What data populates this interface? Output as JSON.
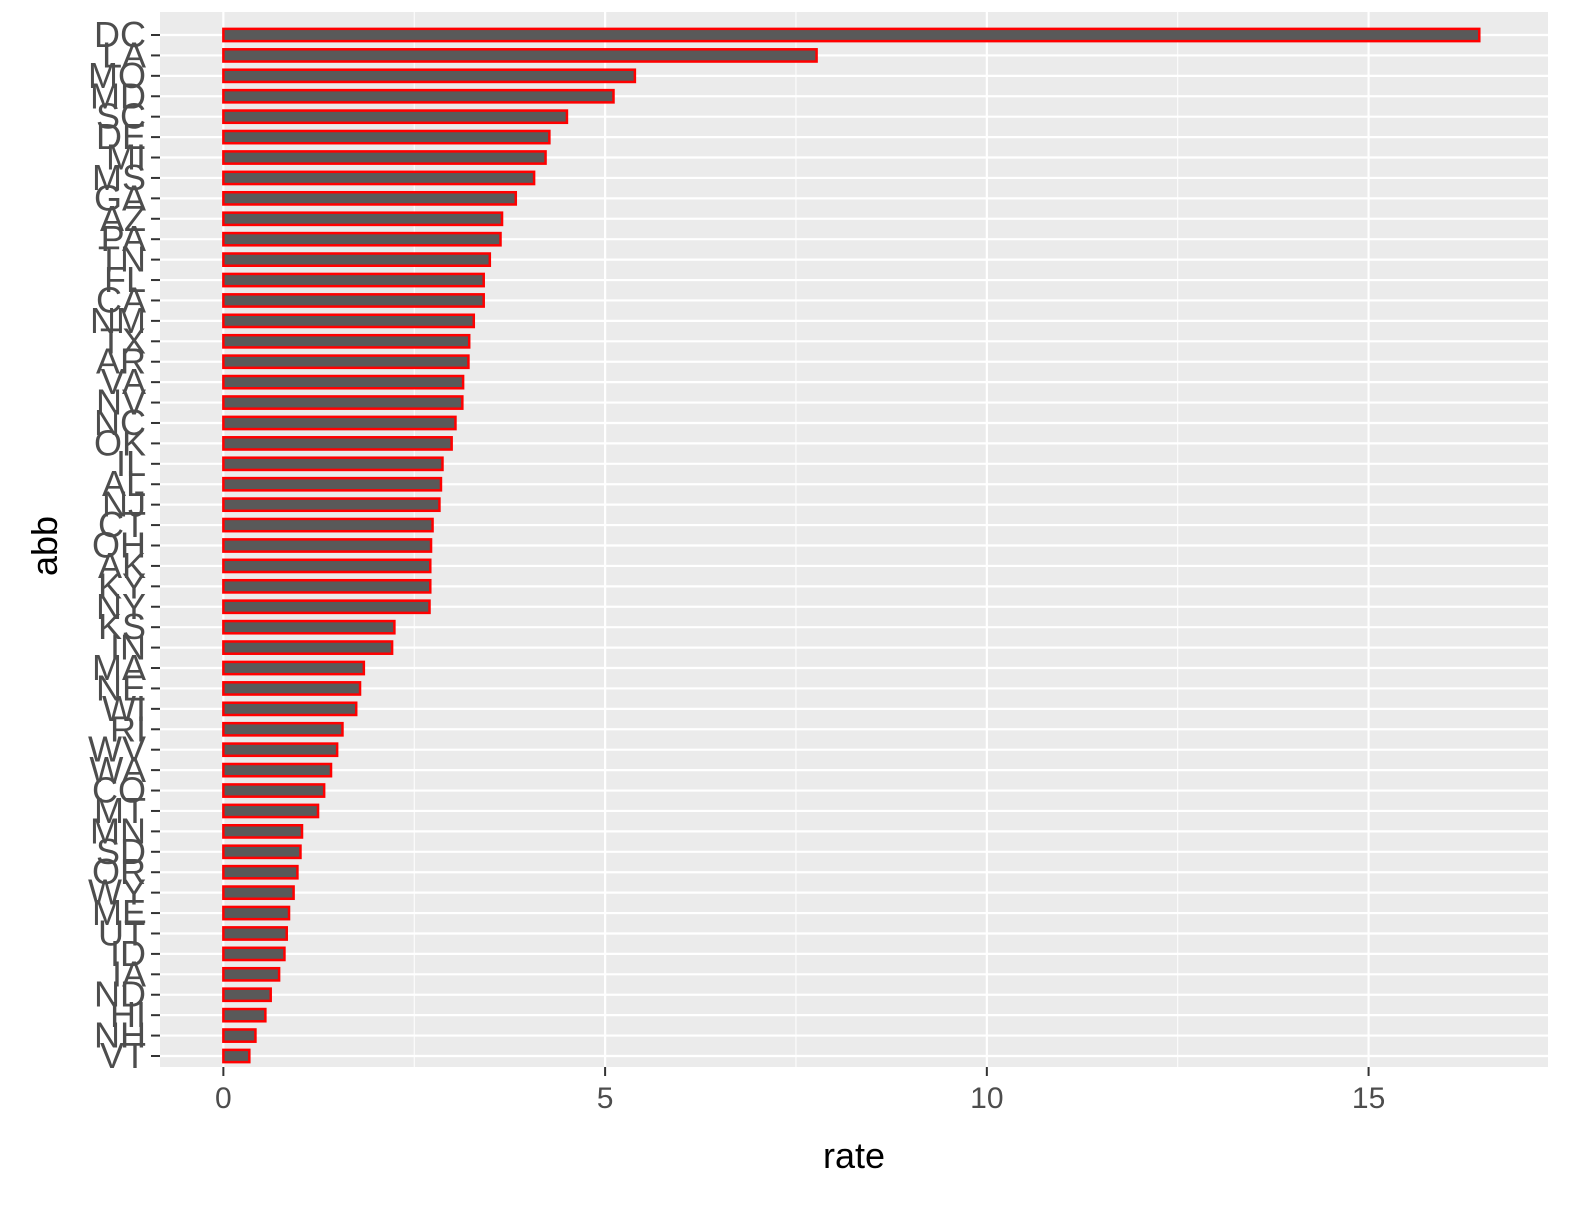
{
  "chart_data": {
    "type": "bar",
    "orientation": "horizontal",
    "xlabel": "rate",
    "ylabel": "abb",
    "xlim": [
      -0.83,
      17.35
    ],
    "x_ticks": [
      0,
      5,
      10,
      15
    ],
    "grid": true,
    "colors": {
      "panel": "#ebebeb",
      "grid": "#ffffff",
      "bar_fill": "#595959",
      "bar_outline": "#ff0000",
      "tick_text": "#4d4d4d"
    },
    "categories": [
      "DC",
      "LA",
      "MO",
      "MD",
      "SC",
      "DE",
      "MI",
      "MS",
      "GA",
      "AZ",
      "PA",
      "TN",
      "FL",
      "CA",
      "NM",
      "TX",
      "AR",
      "VA",
      "NV",
      "NC",
      "OK",
      "IL",
      "AL",
      "NJ",
      "CT",
      "OH",
      "AK",
      "KY",
      "NY",
      "KS",
      "IN",
      "MA",
      "NE",
      "WI",
      "RI",
      "WV",
      "WA",
      "CO",
      "MT",
      "MN",
      "SD",
      "OR",
      "WY",
      "ME",
      "UT",
      "ID",
      "IA",
      "ND",
      "HI",
      "NH",
      "VT"
    ],
    "values": [
      16.45,
      7.77,
      5.39,
      5.11,
      4.5,
      4.27,
      4.22,
      4.07,
      3.83,
      3.65,
      3.63,
      3.49,
      3.41,
      3.41,
      3.28,
      3.22,
      3.21,
      3.14,
      3.13,
      3.04,
      2.99,
      2.87,
      2.85,
      2.83,
      2.74,
      2.72,
      2.71,
      2.71,
      2.7,
      2.24,
      2.21,
      1.84,
      1.79,
      1.74,
      1.56,
      1.49,
      1.41,
      1.32,
      1.24,
      1.03,
      1.01,
      0.97,
      0.92,
      0.86,
      0.83,
      0.8,
      0.73,
      0.62,
      0.55,
      0.42,
      0.34
    ]
  }
}
